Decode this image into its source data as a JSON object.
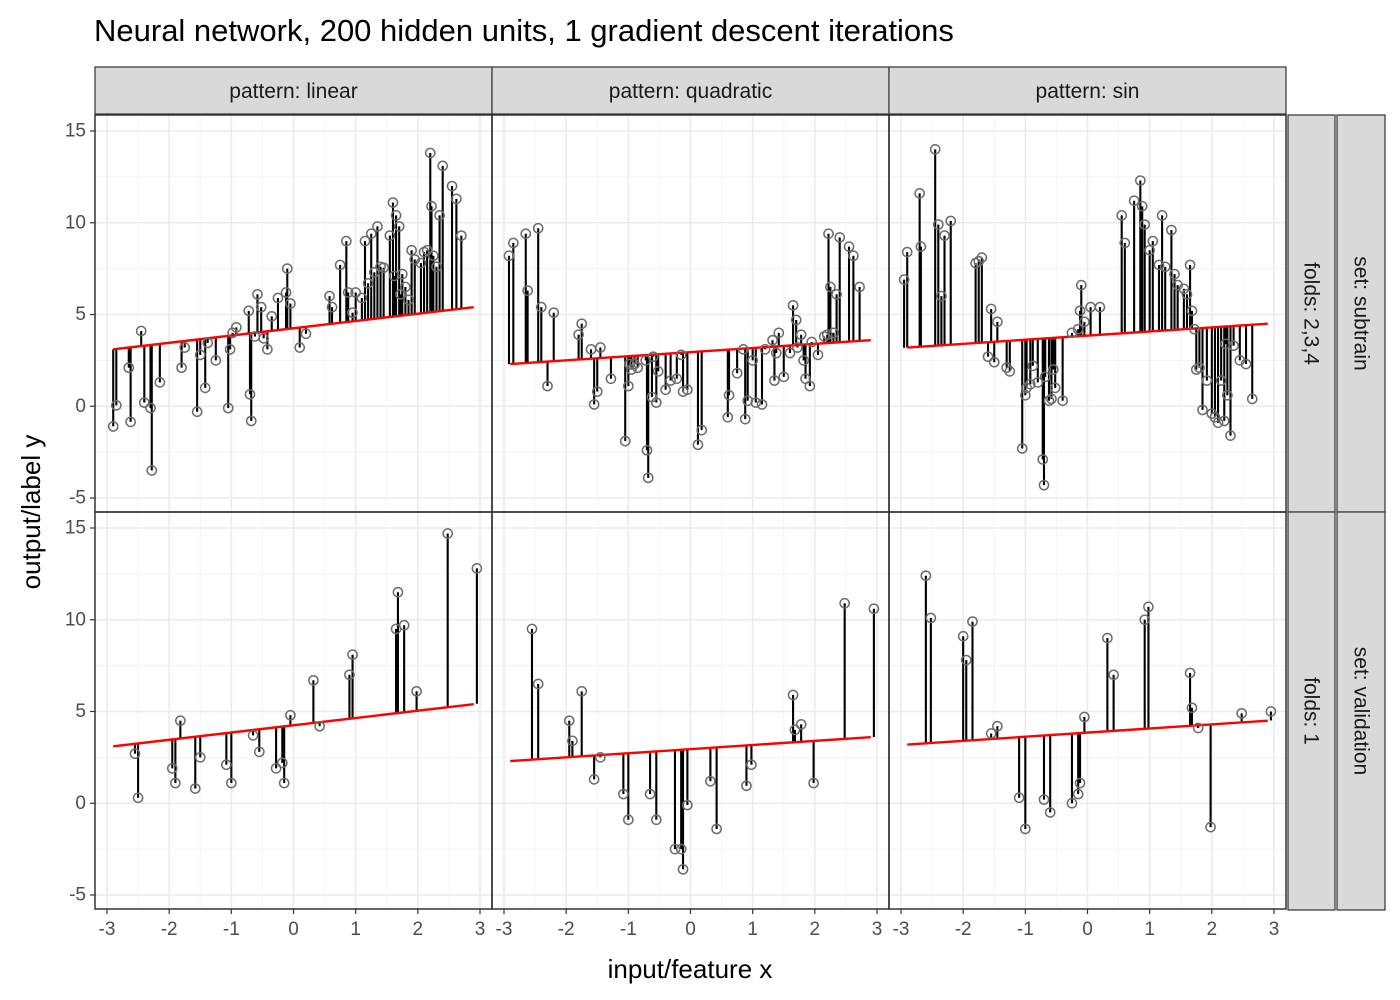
{
  "chart_data": {
    "type": "scatter",
    "title": "Neural network, 200 hidden units, 1 gradient descent iterations",
    "xlabel": "input/feature x",
    "ylabel": "output/label y",
    "xlim": [
      -3,
      3
    ],
    "ylim": [
      -5,
      15
    ],
    "x_ticks": [
      "-3",
      "-2",
      "-1",
      "0",
      "1",
      "2",
      "3"
    ],
    "y_ticks": [
      "-5",
      "0",
      "5",
      "10",
      "15"
    ],
    "col_facets": [
      "pattern: linear",
      "pattern: quadratic",
      "pattern: sin"
    ],
    "row_facets_outer": [
      "set: subtrain",
      "set: validation"
    ],
    "row_facets_inner": [
      "folds: 2,3,4",
      "folds: 1"
    ],
    "colors": {
      "prediction": "#ff0000",
      "residual": "#000000",
      "point": "#6b6b6b",
      "strip": "#d9d9d9"
    },
    "panels": [
      {
        "row": 0,
        "col": 0,
        "pattern": "linear",
        "set": "subtrain",
        "line": [
          [
            -2.9,
            3.1
          ],
          [
            2.9,
            5.4
          ]
        ],
        "points": [
          [
            -2.9,
            -1.1
          ],
          [
            -2.85,
            0.05
          ],
          [
            -2.65,
            2.1
          ],
          [
            -2.62,
            -0.85
          ],
          [
            -2.45,
            4.1
          ],
          [
            -2.4,
            0.2
          ],
          [
            -2.3,
            -0.1
          ],
          [
            -2.28,
            -3.5
          ],
          [
            -2.15,
            1.3
          ],
          [
            -1.8,
            2.1
          ],
          [
            -1.75,
            3.2
          ],
          [
            -1.55,
            -0.3
          ],
          [
            -1.5,
            2.8
          ],
          [
            -1.42,
            1.0
          ],
          [
            -1.38,
            3.45
          ],
          [
            -1.25,
            2.5
          ],
          [
            -1.05,
            -0.1
          ],
          [
            -1.02,
            3.1
          ],
          [
            -0.98,
            4.0
          ],
          [
            -0.92,
            4.3
          ],
          [
            -0.72,
            5.2
          ],
          [
            -0.7,
            0.65
          ],
          [
            -0.68,
            -0.8
          ],
          [
            -0.62,
            3.8
          ],
          [
            -0.58,
            6.1
          ],
          [
            -0.52,
            5.4
          ],
          [
            -0.48,
            3.7
          ],
          [
            -0.42,
            3.1
          ],
          [
            -0.35,
            4.9
          ],
          [
            -0.25,
            5.9
          ],
          [
            -0.12,
            6.2
          ],
          [
            -0.1,
            7.5
          ],
          [
            -0.05,
            5.6
          ],
          [
            0.1,
            3.2
          ],
          [
            0.2,
            3.95
          ],
          [
            0.58,
            6.0
          ],
          [
            0.62,
            5.4
          ],
          [
            0.75,
            7.7
          ],
          [
            0.85,
            9.0
          ],
          [
            0.88,
            6.2
          ],
          [
            0.95,
            5.1
          ],
          [
            1.0,
            6.2
          ],
          [
            1.1,
            5.9
          ],
          [
            1.15,
            9.0
          ],
          [
            1.2,
            6.7
          ],
          [
            1.25,
            9.4
          ],
          [
            1.3,
            7.3
          ],
          [
            1.35,
            9.8
          ],
          [
            1.4,
            7.6
          ],
          [
            1.45,
            7.55
          ],
          [
            1.55,
            9.3
          ],
          [
            1.6,
            11.1
          ],
          [
            1.62,
            7.1
          ],
          [
            1.65,
            10.4
          ],
          [
            1.7,
            9.8
          ],
          [
            1.72,
            6.1
          ],
          [
            1.75,
            7.2
          ],
          [
            1.8,
            6.5
          ],
          [
            1.85,
            5.8
          ],
          [
            1.9,
            8.5
          ],
          [
            1.95,
            8.0
          ],
          [
            2.05,
            7.8
          ],
          [
            2.1,
            8.4
          ],
          [
            2.15,
            8.5
          ],
          [
            2.2,
            13.8
          ],
          [
            2.22,
            10.9
          ],
          [
            2.25,
            8.2
          ],
          [
            2.3,
            7.6
          ],
          [
            2.35,
            10.4
          ],
          [
            2.4,
            13.1
          ],
          [
            2.55,
            12.0
          ],
          [
            2.62,
            11.3
          ],
          [
            2.7,
            9.3
          ]
        ]
      },
      {
        "row": 0,
        "col": 1,
        "pattern": "quadratic",
        "set": "subtrain",
        "line": [
          [
            -2.9,
            2.3
          ],
          [
            2.9,
            3.6
          ]
        ],
        "points": [
          [
            -2.92,
            8.2
          ],
          [
            -2.85,
            8.9
          ],
          [
            -2.65,
            9.4
          ],
          [
            -2.62,
            6.3
          ],
          [
            -2.45,
            9.7
          ],
          [
            -2.4,
            5.4
          ],
          [
            -2.3,
            1.1
          ],
          [
            -2.2,
            5.1
          ],
          [
            -1.8,
            3.9
          ],
          [
            -1.75,
            4.5
          ],
          [
            -1.6,
            3.1
          ],
          [
            -1.55,
            0.1
          ],
          [
            -1.5,
            0.8
          ],
          [
            -1.45,
            3.2
          ],
          [
            -1.28,
            1.5
          ],
          [
            -1.05,
            -1.9
          ],
          [
            -1.0,
            1.1
          ],
          [
            -0.98,
            2.3
          ],
          [
            -0.95,
            2.0
          ],
          [
            -0.9,
            2.3
          ],
          [
            -0.85,
            2.1
          ],
          [
            -0.72,
            2.5
          ],
          [
            -0.7,
            -2.4
          ],
          [
            -0.68,
            -3.9
          ],
          [
            -0.62,
            0.5
          ],
          [
            -0.6,
            2.7
          ],
          [
            -0.55,
            0.2
          ],
          [
            -0.52,
            1.9
          ],
          [
            -0.4,
            0.9
          ],
          [
            -0.32,
            1.4
          ],
          [
            -0.22,
            1.5
          ],
          [
            -0.15,
            2.8
          ],
          [
            -0.12,
            0.8
          ],
          [
            -0.05,
            0.9
          ],
          [
            0.12,
            -2.1
          ],
          [
            0.18,
            -1.3
          ],
          [
            0.6,
            -0.6
          ],
          [
            0.62,
            0.6
          ],
          [
            0.75,
            1.8
          ],
          [
            0.85,
            3.1
          ],
          [
            0.88,
            -0.7
          ],
          [
            0.92,
            0.3
          ],
          [
            1.0,
            2.5
          ],
          [
            1.05,
            0.2
          ],
          [
            1.15,
            0.1
          ],
          [
            1.2,
            3.1
          ],
          [
            1.32,
            3.6
          ],
          [
            1.35,
            1.4
          ],
          [
            1.38,
            2.9
          ],
          [
            1.42,
            4.0
          ],
          [
            1.5,
            1.6
          ],
          [
            1.6,
            2.9
          ],
          [
            1.65,
            5.5
          ],
          [
            1.7,
            4.7
          ],
          [
            1.72,
            3.2
          ],
          [
            1.78,
            3.9
          ],
          [
            1.82,
            2.5
          ],
          [
            1.85,
            1.5
          ],
          [
            1.92,
            1.1
          ],
          [
            1.95,
            3.5
          ],
          [
            2.05,
            2.8
          ],
          [
            2.15,
            3.8
          ],
          [
            2.2,
            3.9
          ],
          [
            2.22,
            9.4
          ],
          [
            2.25,
            6.5
          ],
          [
            2.3,
            4.0
          ],
          [
            2.35,
            6.1
          ],
          [
            2.4,
            9.2
          ],
          [
            2.55,
            8.7
          ],
          [
            2.62,
            8.2
          ],
          [
            2.72,
            6.5
          ]
        ]
      },
      {
        "row": 0,
        "col": 2,
        "pattern": "sin",
        "set": "subtrain",
        "line": [
          [
            -2.9,
            3.2
          ],
          [
            2.9,
            4.5
          ]
        ],
        "points": [
          [
            -2.95,
            6.9
          ],
          [
            -2.9,
            8.4
          ],
          [
            -2.7,
            11.6
          ],
          [
            -2.68,
            8.7
          ],
          [
            -2.45,
            14.0
          ],
          [
            -2.4,
            9.9
          ],
          [
            -2.35,
            6.0
          ],
          [
            -2.3,
            9.3
          ],
          [
            -2.2,
            10.1
          ],
          [
            -1.8,
            7.8
          ],
          [
            -1.75,
            7.9
          ],
          [
            -1.7,
            8.1
          ],
          [
            -1.6,
            2.7
          ],
          [
            -1.55,
            5.3
          ],
          [
            -1.5,
            2.4
          ],
          [
            -1.45,
            4.6
          ],
          [
            -1.3,
            2.1
          ],
          [
            -1.25,
            1.9
          ],
          [
            -1.05,
            -2.3
          ],
          [
            -1.0,
            0.6
          ],
          [
            -0.98,
            1.0
          ],
          [
            -0.92,
            1.2
          ],
          [
            -0.88,
            2.2
          ],
          [
            -0.8,
            1.3
          ],
          [
            -0.72,
            -2.9
          ],
          [
            -0.7,
            -4.3
          ],
          [
            -0.68,
            1.6
          ],
          [
            -0.62,
            0.3
          ],
          [
            -0.58,
            0.4
          ],
          [
            -0.55,
            2.0
          ],
          [
            -0.52,
            1.0
          ],
          [
            -0.4,
            0.3
          ],
          [
            -0.25,
            4.0
          ],
          [
            -0.15,
            4.2
          ],
          [
            -0.12,
            5.2
          ],
          [
            -0.1,
            6.6
          ],
          [
            -0.05,
            4.6
          ],
          [
            0.05,
            5.4
          ],
          [
            0.2,
            5.4
          ],
          [
            0.55,
            10.4
          ],
          [
            0.6,
            8.9
          ],
          [
            0.75,
            11.2
          ],
          [
            0.85,
            12.3
          ],
          [
            0.88,
            10.9
          ],
          [
            0.92,
            9.9
          ],
          [
            1.0,
            8.5
          ],
          [
            1.05,
            9.0
          ],
          [
            1.15,
            7.7
          ],
          [
            1.2,
            10.4
          ],
          [
            1.25,
            7.6
          ],
          [
            1.35,
            9.6
          ],
          [
            1.4,
            7.2
          ],
          [
            1.45,
            6.6
          ],
          [
            1.55,
            6.4
          ],
          [
            1.6,
            6.1
          ],
          [
            1.65,
            7.7
          ],
          [
            1.68,
            5.2
          ],
          [
            1.72,
            4.2
          ],
          [
            1.75,
            2.0
          ],
          [
            1.8,
            2.1
          ],
          [
            1.85,
            -0.2
          ],
          [
            1.92,
            1.4
          ],
          [
            2.0,
            -0.4
          ],
          [
            2.05,
            -0.6
          ],
          [
            2.1,
            -0.9
          ],
          [
            2.15,
            1.4
          ],
          [
            2.2,
            -0.8
          ],
          [
            2.22,
            3.4
          ],
          [
            2.25,
            0.6
          ],
          [
            2.3,
            -1.6
          ],
          [
            2.35,
            3.3
          ],
          [
            2.45,
            2.5
          ],
          [
            2.55,
            2.3
          ],
          [
            2.65,
            0.4
          ]
        ]
      },
      {
        "row": 1,
        "col": 0,
        "pattern": "linear",
        "set": "validation",
        "line": [
          [
            -2.9,
            3.1
          ],
          [
            2.9,
            5.4
          ]
        ],
        "points": [
          [
            -2.55,
            2.7
          ],
          [
            -2.5,
            0.3
          ],
          [
            -1.95,
            1.9
          ],
          [
            -1.9,
            1.1
          ],
          [
            -1.82,
            4.5
          ],
          [
            -1.58,
            0.8
          ],
          [
            -1.5,
            2.5
          ],
          [
            -1.08,
            2.1
          ],
          [
            -1.0,
            1.1
          ],
          [
            -0.65,
            3.7
          ],
          [
            -0.55,
            2.8
          ],
          [
            -0.28,
            1.9
          ],
          [
            -0.18,
            2.2
          ],
          [
            -0.15,
            1.1
          ],
          [
            -0.05,
            4.8
          ],
          [
            0.32,
            6.7
          ],
          [
            0.42,
            4.2
          ],
          [
            0.9,
            7.0
          ],
          [
            0.95,
            8.1
          ],
          [
            1.65,
            9.5
          ],
          [
            1.68,
            11.5
          ],
          [
            1.78,
            9.7
          ],
          [
            1.98,
            6.1
          ],
          [
            2.48,
            14.7
          ],
          [
            2.95,
            12.8
          ]
        ]
      },
      {
        "row": 1,
        "col": 1,
        "pattern": "quadratic",
        "set": "validation",
        "line": [
          [
            -2.9,
            2.3
          ],
          [
            2.9,
            3.6
          ]
        ],
        "points": [
          [
            -2.55,
            9.5
          ],
          [
            -2.45,
            6.5
          ],
          [
            -1.95,
            4.5
          ],
          [
            -1.9,
            3.4
          ],
          [
            -1.75,
            6.1
          ],
          [
            -1.55,
            1.3
          ],
          [
            -1.45,
            2.5
          ],
          [
            -1.08,
            0.5
          ],
          [
            -1.0,
            -0.9
          ],
          [
            -0.65,
            0.5
          ],
          [
            -0.55,
            -0.9
          ],
          [
            -0.25,
            -2.5
          ],
          [
            -0.15,
            -2.5
          ],
          [
            -0.12,
            -3.6
          ],
          [
            -0.05,
            -0.1
          ],
          [
            0.32,
            1.2
          ],
          [
            0.42,
            -1.4
          ],
          [
            0.9,
            0.95
          ],
          [
            0.98,
            2.1
          ],
          [
            1.65,
            5.9
          ],
          [
            1.68,
            4.0
          ],
          [
            1.78,
            4.3
          ],
          [
            1.98,
            1.1
          ],
          [
            2.48,
            10.9
          ],
          [
            2.95,
            10.6
          ]
        ]
      },
      {
        "row": 1,
        "col": 2,
        "pattern": "sin",
        "set": "validation",
        "line": [
          [
            -2.9,
            3.2
          ],
          [
            2.9,
            4.5
          ]
        ],
        "points": [
          [
            -2.6,
            12.4
          ],
          [
            -2.52,
            10.1
          ],
          [
            -2.0,
            9.1
          ],
          [
            -1.95,
            7.8
          ],
          [
            -1.85,
            9.9
          ],
          [
            -1.55,
            3.8
          ],
          [
            -1.45,
            4.2
          ],
          [
            -1.1,
            0.3
          ],
          [
            -1.0,
            -1.4
          ],
          [
            -0.7,
            0.2
          ],
          [
            -0.6,
            -0.5
          ],
          [
            -0.25,
            -0.0
          ],
          [
            -0.15,
            0.5
          ],
          [
            -0.12,
            1.1
          ],
          [
            -0.05,
            4.7
          ],
          [
            0.32,
            9.0
          ],
          [
            0.42,
            7.0
          ],
          [
            0.92,
            10.0
          ],
          [
            0.98,
            10.7
          ],
          [
            1.65,
            7.1
          ],
          [
            1.68,
            5.2
          ],
          [
            1.78,
            4.1
          ],
          [
            1.98,
            -1.3
          ],
          [
            2.48,
            4.9
          ],
          [
            2.95,
            5.0
          ]
        ]
      }
    ]
  }
}
